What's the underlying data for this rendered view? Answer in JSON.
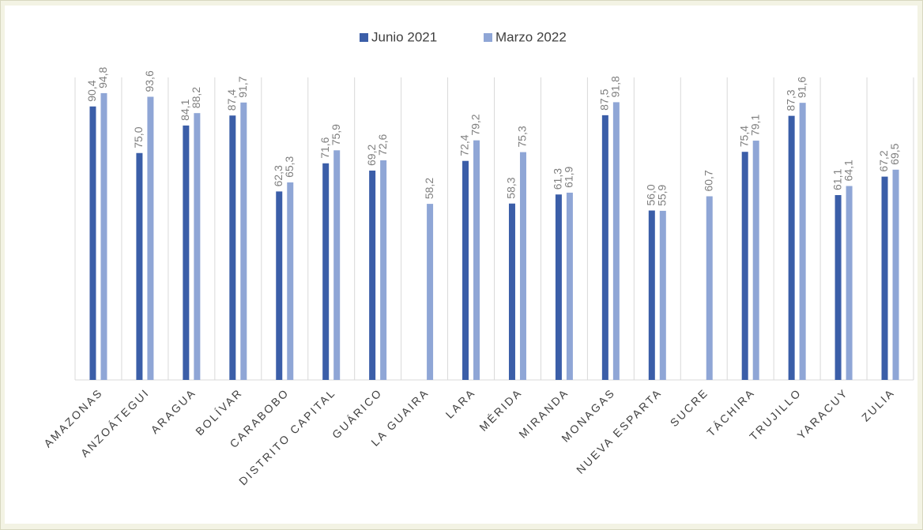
{
  "chart_data": {
    "type": "bar",
    "categories": [
      "AMAZONAS",
      "ANZOÁTEGUI",
      "ARAGUA",
      "BOLÍVAR",
      "CARABOBO",
      "DISTRITO CAPITAL",
      "GUÁRICO",
      "LA GUAIRA",
      "LARA",
      "MÉRIDA",
      "MIRANDA",
      "MONAGAS",
      "NUEVA ESPARTA",
      "SUCRE",
      "TÁCHIRA",
      "TRUJILLO",
      "YARACUY",
      "ZULIA"
    ],
    "series": [
      {
        "name": "Junio 2021",
        "color": "#3b5ea8",
        "values": [
          90.4,
          75.0,
          84.1,
          87.4,
          62.3,
          71.6,
          69.2,
          null,
          72.4,
          58.3,
          61.3,
          87.5,
          56.0,
          null,
          75.4,
          87.3,
          61.1,
          67.2
        ],
        "value_labels": [
          "90,4",
          "75,0",
          "84,1",
          "87,4",
          "62,3",
          "71,6",
          "69,2",
          null,
          "72,4",
          "58,3",
          "61,3",
          "87,5",
          "56,0",
          null,
          "75,4",
          "87,3",
          "61,1",
          "67,2"
        ]
      },
      {
        "name": "Marzo 2022",
        "color": "#8fa6d6",
        "values": [
          94.8,
          93.6,
          88.2,
          91.7,
          65.3,
          75.9,
          72.6,
          58.2,
          79.2,
          75.3,
          61.9,
          91.8,
          55.9,
          60.7,
          79.1,
          91.6,
          64.1,
          69.5
        ],
        "value_labels": [
          "94,8",
          "93,6",
          "88,2",
          "91,7",
          "65,3",
          "75,9",
          "72,6",
          "58,2",
          "79,2",
          "75,3",
          "61,9",
          "91,8",
          "55,9",
          "60,7",
          "79,1",
          "91,6",
          "64,1",
          "69,5"
        ]
      }
    ],
    "ylim": [
      0,
      100
    ],
    "grid": true,
    "legend": "top"
  }
}
